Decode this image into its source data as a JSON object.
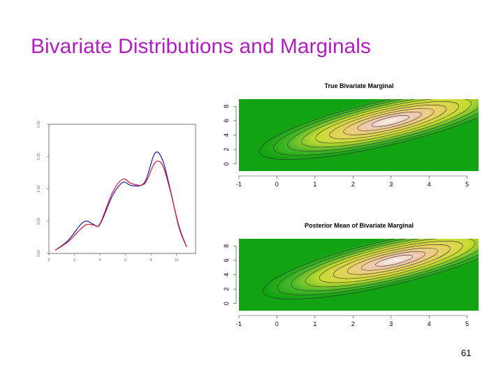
{
  "slide": {
    "title": "Bivariate Distributions and Marginals",
    "page_number": "61"
  },
  "colors": {
    "title": "#b01fc0",
    "series_a": "#1a1aa8",
    "series_b": "#d0153a",
    "heat_low": "#12a312",
    "heat_mid": "#e8e83a",
    "heat_high": "#f4f0ec"
  },
  "chart_data": [
    {
      "type": "line",
      "title": "",
      "xlabel": "",
      "ylabel": "",
      "xlim": [
        0,
        11.5
      ],
      "ylim": [
        0,
        0.2
      ],
      "x_ticks": [
        "0",
        "2",
        "4",
        "6",
        "8",
        "10"
      ],
      "y_ticks": [
        "0.00",
        "0.05",
        "0.10",
        "0.15",
        "0.20"
      ],
      "series": [
        {
          "x": [
            0.5,
            1.5,
            2.5,
            3,
            3.5,
            4,
            5,
            5.8,
            6.5,
            7.5,
            8.3,
            8.9,
            9.5,
            10.2,
            10.8
          ],
          "y": [
            0.005,
            0.02,
            0.045,
            0.05,
            0.045,
            0.045,
            0.09,
            0.11,
            0.105,
            0.11,
            0.155,
            0.145,
            0.1,
            0.04,
            0.01
          ]
        },
        {
          "x": [
            0.5,
            1.5,
            2.5,
            3,
            3.5,
            4,
            5,
            5.8,
            6.5,
            7.5,
            8.3,
            8.9,
            9.5,
            10.2,
            10.8
          ],
          "y": [
            0.005,
            0.018,
            0.038,
            0.045,
            0.044,
            0.046,
            0.095,
            0.115,
            0.108,
            0.108,
            0.14,
            0.137,
            0.098,
            0.042,
            0.01
          ]
        }
      ]
    },
    {
      "type": "heatmap",
      "title": "True Bivariate Marginal",
      "xlim": [
        -1,
        5.3
      ],
      "ylim": [
        -1,
        9
      ],
      "x_ticks": [
        "-1",
        "0",
        "1",
        "2",
        "3",
        "4",
        "5"
      ],
      "y_ticks": [
        "0",
        "2",
        "4",
        "6",
        "8"
      ],
      "peak": {
        "x": 3.0,
        "y": 6.0
      },
      "contour_levels": 9
    },
    {
      "type": "heatmap",
      "title": "Posterior Mean of Bivariate Marginal",
      "xlim": [
        -1,
        5.3
      ],
      "ylim": [
        -1,
        9
      ],
      "x_ticks": [
        "-1",
        "0",
        "1",
        "2",
        "3",
        "4",
        "5"
      ],
      "y_ticks": [
        "0",
        "2",
        "4",
        "6",
        "8"
      ],
      "peak": {
        "x": 3.1,
        "y": 6.0
      },
      "contour_levels": 9
    }
  ]
}
